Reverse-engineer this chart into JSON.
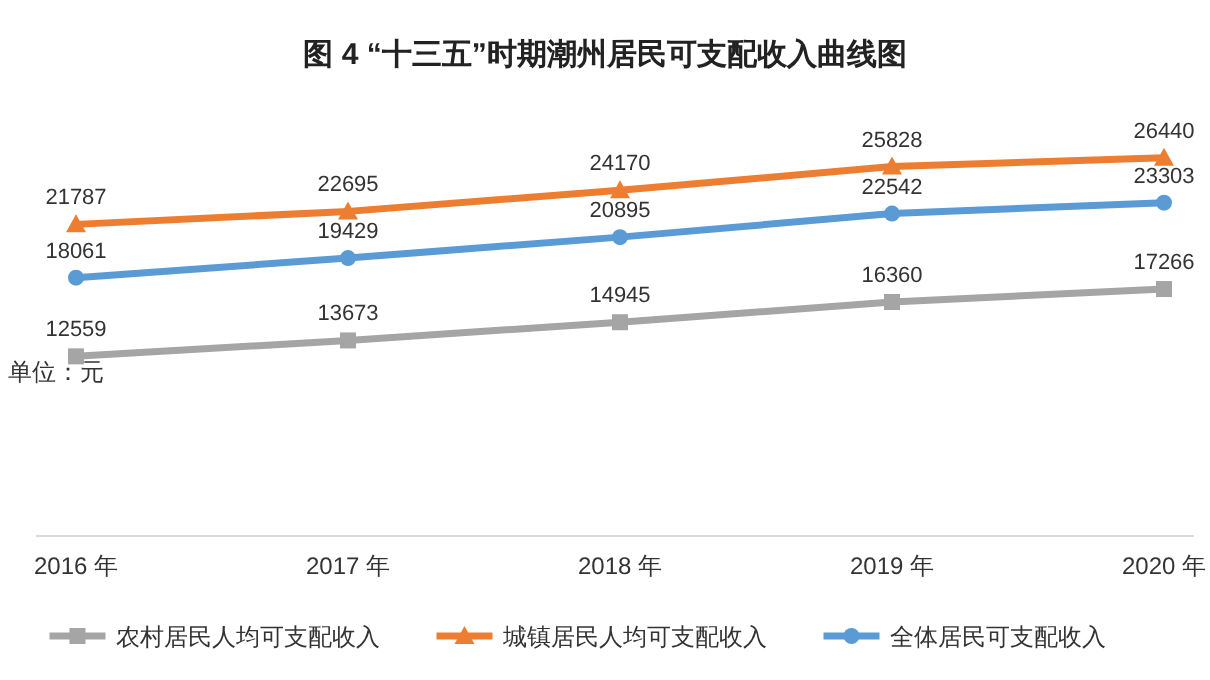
{
  "chart_data": {
    "type": "line",
    "title": "图 4 “十三五”时期潮州居民可支配收入曲线图",
    "categories": [
      "2016 年",
      "2017 年",
      "2018 年",
      "2019 年",
      "2020 年"
    ],
    "series": [
      {
        "name": "农村居民人均可支配收入",
        "color": "#a5a5a5",
        "marker": "square",
        "values": [
          12559,
          13673,
          14945,
          16360,
          17266
        ]
      },
      {
        "name": "城镇居民人均可支配收入",
        "color": "#ed7d31",
        "marker": "triangle",
        "values": [
          21787,
          22695,
          24170,
          25828,
          26440
        ]
      },
      {
        "name": "全体居民可支配收入",
        "color": "#5b9bd5",
        "marker": "circle",
        "values": [
          18061,
          19429,
          20895,
          22542,
          23303
        ]
      }
    ],
    "annotations": [
      "单位：元"
    ],
    "data_labels": true,
    "legend": "bottom",
    "line_style": "solid"
  }
}
